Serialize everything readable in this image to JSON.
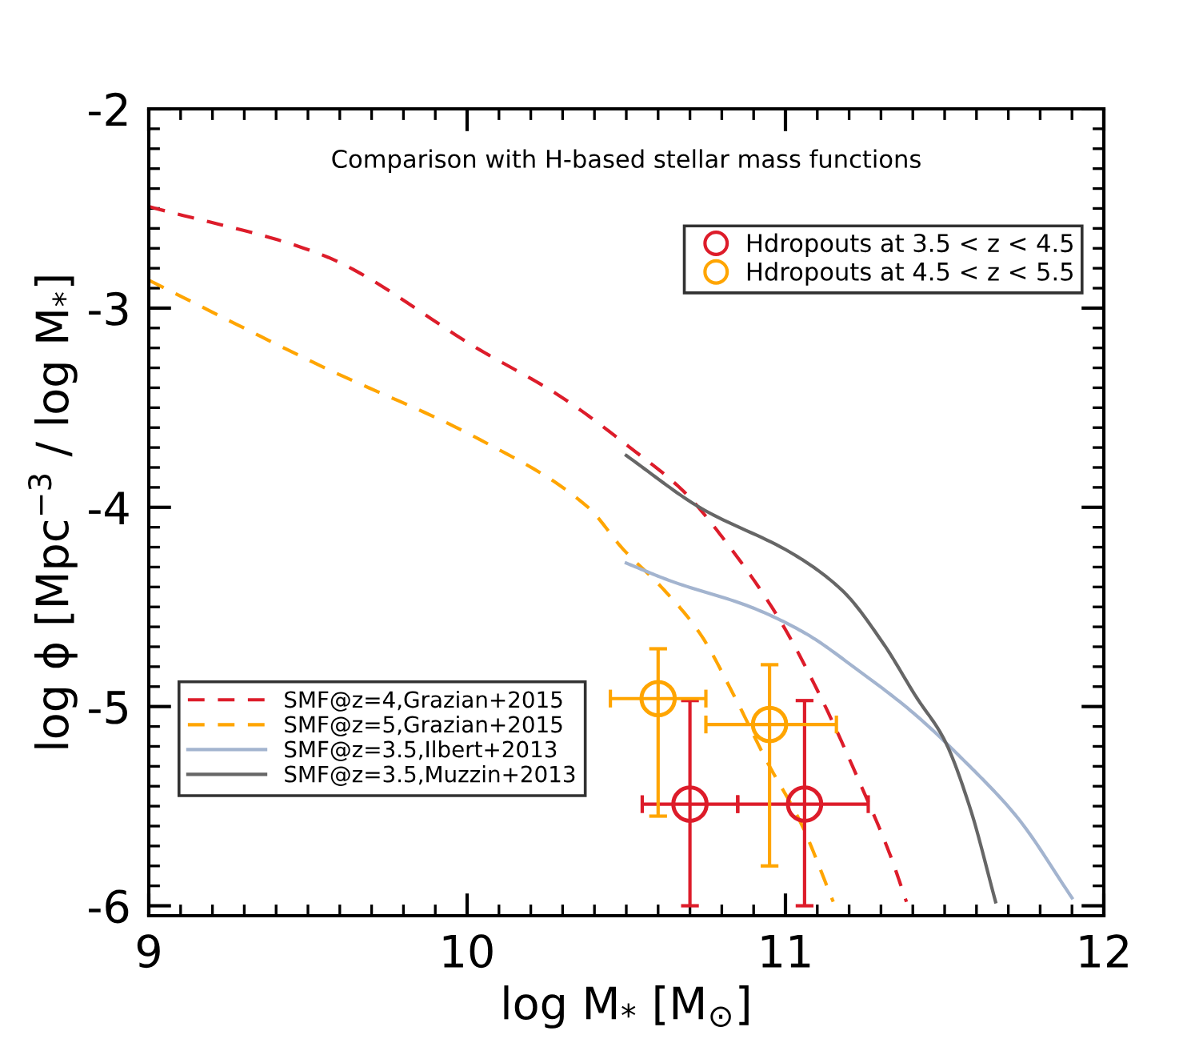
{
  "chart_data": {
    "type": "line",
    "xlabel": "log M$_{*}$ [M$_{⊙}$]",
    "ylabel": "log ϕ [Mpc$^{−3}$ / log M$_{*}$]",
    "annotations": [
      "Comparison with H-based stellar mass functions"
    ],
    "xlim": [
      9,
      12
    ],
    "xticks": [
      9,
      10,
      11,
      12
    ],
    "ylim": [
      -6.05,
      -2
    ],
    "yticks": [
      {
        "value": -2,
        "label": "-2"
      },
      {
        "value": -3,
        "label": "-3"
      },
      {
        "value": -4,
        "label": "-4"
      },
      {
        "value": -5,
        "label": "-5"
      },
      {
        "value": -6,
        "label": "-6"
      }
    ],
    "grid": false,
    "legend": "top right",
    "series": [
      {
        "name": "Hdropouts at 3.5 < z < 4.5",
        "type": "scatter",
        "marker": "circle",
        "color": "#dd1c2a",
        "x": [
          10.7,
          11.06
        ],
        "values": [
          -5.49,
          -5.49
        ],
        "errors": [
          [
            -6.0,
            -4.97
          ],
          [
            -6.0,
            -4.97
          ]
        ],
        "xerrors": [
          [
            10.55,
            10.85
          ],
          [
            10.85,
            11.26
          ]
        ]
      },
      {
        "name": "Hdropouts at 4.5 < z < 5.5",
        "type": "scatter",
        "marker": "circle",
        "color": "#ffa500",
        "x": [
          10.6,
          10.95
        ],
        "values": [
          -4.96,
          -5.09
        ],
        "errors": [
          [
            -5.55,
            -4.71
          ],
          [
            -5.8,
            -4.79
          ]
        ],
        "xerrors": [
          [
            10.45,
            10.75
          ],
          [
            10.75,
            11.16
          ]
        ]
      },
      {
        "name": "SMF@z=4,Grazian+2015",
        "line_style": "dashed",
        "color": "#dd1c2a",
        "x": [
          9.0,
          9.54,
          10.04,
          10.29,
          10.52,
          10.68,
          10.83,
          10.98,
          11.11,
          11.23,
          11.33,
          11.38
        ],
        "values": [
          -2.49,
          -2.73,
          -3.21,
          -3.44,
          -3.71,
          -3.92,
          -4.21,
          -4.56,
          -4.95,
          -5.37,
          -5.75,
          -5.98
        ]
      },
      {
        "name": "SMF@z=5,Grazian+2015",
        "line_style": "dashed",
        "color": "#ffa500",
        "x": [
          9.0,
          9.54,
          10.04,
          10.38,
          10.49,
          10.61,
          10.73,
          10.84,
          10.94,
          11.05,
          11.15
        ],
        "values": [
          -2.86,
          -3.29,
          -3.66,
          -4.0,
          -4.21,
          -4.4,
          -4.63,
          -4.95,
          -5.27,
          -5.59,
          -5.98
        ]
      },
      {
        "name": "SMF@z=3.5,Ilbert+2013",
        "line_style": "solid",
        "color": "#a3b4cf",
        "x": [
          10.5,
          10.64,
          10.89,
          11.06,
          11.23,
          11.4,
          11.56,
          11.73,
          11.9
        ],
        "values": [
          -4.28,
          -4.37,
          -4.5,
          -4.63,
          -4.82,
          -5.03,
          -5.27,
          -5.56,
          -5.96
        ]
      },
      {
        "name": "SMF@z=3.5,Muzzin+2013",
        "line_style": "solid",
        "color": "#666666",
        "x": [
          10.5,
          10.73,
          11.03,
          11.18,
          11.31,
          11.41,
          11.5,
          11.58,
          11.66
        ],
        "values": [
          -3.74,
          -4.0,
          -4.24,
          -4.42,
          -4.69,
          -4.95,
          -5.17,
          -5.51,
          -5.98
        ]
      }
    ]
  }
}
